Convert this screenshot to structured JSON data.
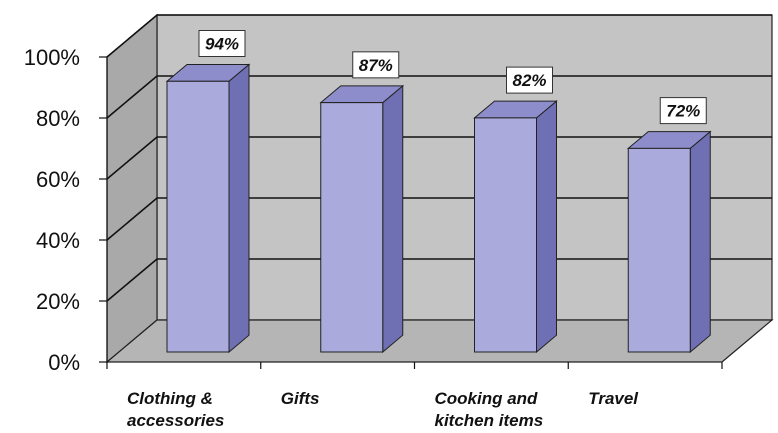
{
  "chart_data": {
    "type": "bar",
    "categories": [
      [
        "Clothing &",
        "accessories"
      ],
      [
        "Gifts"
      ],
      [
        "Cooking and",
        "kitchen items"
      ],
      [
        "Travel"
      ]
    ],
    "values": [
      94,
      87,
      82,
      72
    ],
    "value_labels": [
      "94%",
      "87%",
      "82%",
      "72%"
    ],
    "ylim": [
      0,
      100
    ],
    "yticks": [
      0,
      20,
      40,
      60,
      80,
      100
    ],
    "ytick_labels": [
      "0%",
      "20%",
      "40%",
      "60%",
      "80%",
      "100%"
    ],
    "grid": true,
    "style": "3d-column",
    "colors": {
      "bar_front": "#aaaadd",
      "bar_side": "#6f6fb3",
      "bar_top": "#8d8dcc",
      "wall": "#c4c4c4",
      "side_wall": "#a9a9a9",
      "floor": "#b5b5b5"
    }
  }
}
